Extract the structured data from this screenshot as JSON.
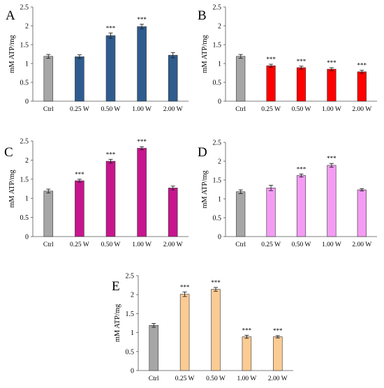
{
  "chart_data": [
    {
      "panel_label": "A",
      "type": "bar",
      "ylabel": "mM ATP/mg",
      "ylim": [
        0,
        2.5
      ],
      "yticks": [
        "0",
        "0.5",
        "1",
        "1.5",
        "2",
        "2.5"
      ],
      "categories": [
        "Ctrl",
        "0.25 W",
        "0.50 W",
        "1.00 W",
        "2.00 W"
      ],
      "values": [
        1.19,
        1.18,
        1.74,
        1.98,
        1.22
      ],
      "errors": [
        0.05,
        0.05,
        0.07,
        0.06,
        0.07
      ],
      "significance": [
        "",
        "",
        "***",
        "***",
        ""
      ],
      "colors": [
        "#a6a6a6",
        "#2e5c8f",
        "#2e5c8f",
        "#2e5c8f",
        "#2e5c8f"
      ]
    },
    {
      "panel_label": "B",
      "type": "bar",
      "ylabel": "mM ATP/mg",
      "ylim": [
        0,
        2.5
      ],
      "yticks": [
        "0",
        "0.5",
        "1",
        "1.5",
        "2",
        "2.5"
      ],
      "categories": [
        "Ctrl",
        "0.25 W",
        "0.50 W",
        "1.00 W",
        "2.00 W"
      ],
      "values": [
        1.19,
        0.94,
        0.89,
        0.85,
        0.78
      ],
      "errors": [
        0.05,
        0.04,
        0.04,
        0.04,
        0.04
      ],
      "significance": [
        "",
        "***",
        "***",
        "***",
        "***"
      ],
      "colors": [
        "#a6a6a6",
        "#ff0000",
        "#ff0000",
        "#ff0000",
        "#ff0000"
      ]
    },
    {
      "panel_label": "C",
      "type": "bar",
      "ylabel": "mM ATP/mg",
      "ylim": [
        0,
        2.5
      ],
      "yticks": [
        "0",
        "0.5",
        "1",
        "1.5",
        "2",
        "2.5"
      ],
      "categories": [
        "Ctrl",
        "0.25 W",
        "0.50 W",
        "1.00 W",
        "2.00 W"
      ],
      "values": [
        1.19,
        1.46,
        1.97,
        2.31,
        1.27
      ],
      "errors": [
        0.05,
        0.04,
        0.05,
        0.04,
        0.05
      ],
      "significance": [
        "",
        "***",
        "***",
        "***",
        ""
      ],
      "colors": [
        "#a6a6a6",
        "#c7158e",
        "#c7158e",
        "#c7158e",
        "#c7158e"
      ]
    },
    {
      "panel_label": "D",
      "type": "bar",
      "ylabel": "mM ATP/mg",
      "ylim": [
        0,
        2.5
      ],
      "yticks": [
        "0",
        "0.5",
        "1",
        "1.5",
        "2",
        "2.5"
      ],
      "categories": [
        "Ctrl",
        "0.25 W",
        "0.50 W",
        "1.00 W",
        "2.00 W"
      ],
      "values": [
        1.19,
        1.29,
        1.62,
        1.89,
        1.24
      ],
      "errors": [
        0.05,
        0.07,
        0.04,
        0.05,
        0.03
      ],
      "significance": [
        "",
        "",
        "***",
        "***",
        ""
      ],
      "colors": [
        "#a6a6a6",
        "#f49cf4",
        "#f49cf4",
        "#f49cf4",
        "#f49cf4"
      ]
    },
    {
      "panel_label": "E",
      "type": "bar",
      "ylabel": "mM ATP/mg",
      "ylim": [
        0,
        2.5
      ],
      "yticks": [
        "0",
        "0.5",
        "1",
        "1.5",
        "2",
        "2.5"
      ],
      "categories": [
        "Ctrl",
        "0.25 W",
        "0.50 W",
        "1.00 W",
        "2.00 W"
      ],
      "values": [
        1.19,
        2.01,
        2.14,
        0.89,
        0.89
      ],
      "errors": [
        0.05,
        0.06,
        0.05,
        0.04,
        0.03
      ],
      "significance": [
        "",
        "***",
        "***",
        "***",
        "***"
      ],
      "colors": [
        "#a6a6a6",
        "#fbcb94",
        "#fbcb94",
        "#fbcb94",
        "#fbcb94"
      ]
    }
  ]
}
